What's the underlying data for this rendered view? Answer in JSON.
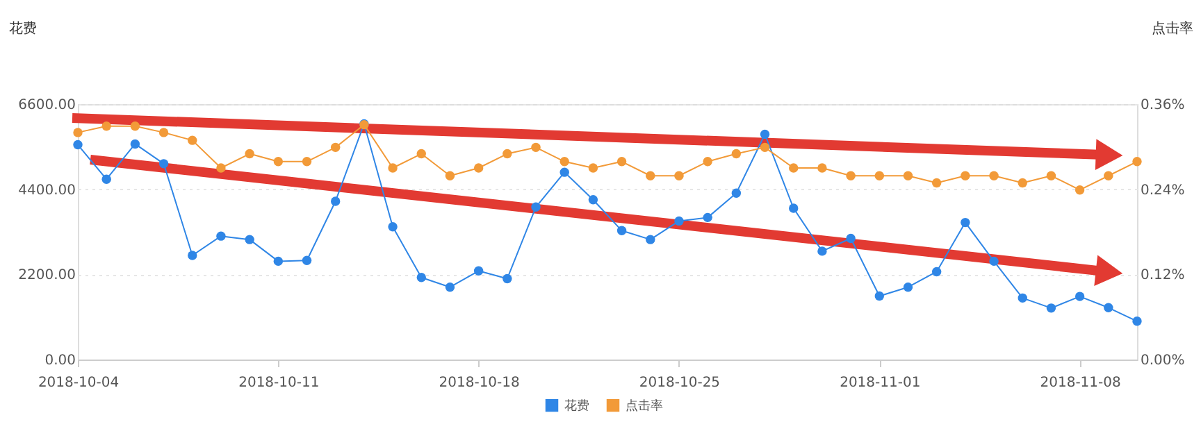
{
  "chart_data": {
    "type": "line",
    "ylabel": "花费",
    "y2label": "点击率",
    "x": [
      "2018-10-04",
      "2018-10-05",
      "2018-10-06",
      "2018-10-07",
      "2018-10-08",
      "2018-10-09",
      "2018-10-10",
      "2018-10-11",
      "2018-10-12",
      "2018-10-13",
      "2018-10-14",
      "2018-10-15",
      "2018-10-16",
      "2018-10-17",
      "2018-10-18",
      "2018-10-19",
      "2018-10-20",
      "2018-10-21",
      "2018-10-22",
      "2018-10-23",
      "2018-10-24",
      "2018-10-25",
      "2018-10-26",
      "2018-10-27",
      "2018-10-28",
      "2018-10-29",
      "2018-10-30",
      "2018-10-31",
      "2018-11-01",
      "2018-11-02",
      "2018-11-03",
      "2018-11-04",
      "2018-11-05",
      "2018-11-06",
      "2018-11-07",
      "2018-11-08",
      "2018-11-09",
      "2018-11-10"
    ],
    "series": [
      {
        "name": "花费",
        "color": "#2f86e6",
        "values": [
          5550,
          4660,
          5570,
          5060,
          2690,
          3190,
          3100,
          2540,
          2560,
          4090,
          6090,
          3430,
          2120,
          1870,
          2290,
          2090,
          3940,
          4840,
          4130,
          3330,
          3100,
          3580,
          3670,
          4300,
          5820,
          3910,
          2800,
          3130,
          1640,
          1870,
          2270,
          3540,
          2540,
          1590,
          1330,
          1630,
          1340,
          990
        ]
      },
      {
        "name": "点击率",
        "color": "#f29a38",
        "axis": "y2",
        "values": [
          0.32,
          0.329,
          0.329,
          0.32,
          0.309,
          0.27,
          0.29,
          0.279,
          0.279,
          0.299,
          0.331,
          0.27,
          0.29,
          0.259,
          0.27,
          0.29,
          0.299,
          0.279,
          0.27,
          0.279,
          0.259,
          0.259,
          0.279,
          0.29,
          0.299,
          0.27,
          0.27,
          0.259,
          0.259,
          0.259,
          0.249,
          0.259,
          0.259,
          0.249,
          0.259,
          0.239,
          0.259,
          0.279
        ]
      }
    ],
    "xlim": [
      "2018-10-04",
      "2018-11-10"
    ],
    "xticks": [
      "2018-10-04",
      "2018-10-11",
      "2018-10-18",
      "2018-10-25",
      "2018-11-01",
      "2018-11-08"
    ],
    "ylim": [
      0,
      6600
    ],
    "yticks": [
      {
        "value": 0,
        "label": "0.00"
      },
      {
        "value": 2200,
        "label": "2200.00"
      },
      {
        "value": 4400,
        "label": "4400.00"
      },
      {
        "value": 6600,
        "label": "6600.00"
      }
    ],
    "y2lim": [
      0,
      0.36
    ],
    "y2ticks": [
      {
        "value": 0,
        "label": "0.00%"
      },
      {
        "value": 0.12,
        "label": "0.12%"
      },
      {
        "value": 0.24,
        "label": "0.24%"
      },
      {
        "value": 0.36,
        "label": "0.36%"
      }
    ],
    "grid": "y",
    "legend": "bottom",
    "marker": "circle",
    "line_style": "solid"
  }
}
